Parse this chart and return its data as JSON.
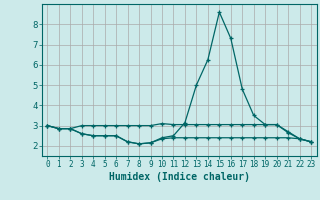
{
  "title": "",
  "xlabel": "Humidex (Indice chaleur)",
  "background_color": "#cceaea",
  "grid_color": "#aaaaaa",
  "line_color": "#006666",
  "x_values": [
    0,
    1,
    2,
    3,
    4,
    5,
    6,
    7,
    8,
    9,
    10,
    11,
    12,
    13,
    14,
    15,
    16,
    17,
    18,
    19,
    20,
    21,
    22,
    23
  ],
  "line1": [
    3.0,
    2.85,
    2.85,
    3.0,
    3.0,
    3.0,
    3.0,
    3.0,
    3.0,
    3.0,
    3.1,
    3.05,
    3.05,
    3.05,
    3.05,
    3.05,
    3.05,
    3.05,
    3.05,
    3.05,
    3.05,
    2.7,
    2.35,
    2.2
  ],
  "line2": [
    3.0,
    2.85,
    2.85,
    2.6,
    2.5,
    2.5,
    2.5,
    2.2,
    2.1,
    2.15,
    2.4,
    2.5,
    3.15,
    5.0,
    6.25,
    8.6,
    7.3,
    4.8,
    3.5,
    3.05,
    3.05,
    2.65,
    2.35,
    2.2
  ],
  "line3": [
    3.0,
    2.85,
    2.85,
    2.6,
    2.5,
    2.5,
    2.5,
    2.2,
    2.1,
    2.15,
    2.35,
    2.4,
    2.4,
    2.4,
    2.4,
    2.4,
    2.4,
    2.4,
    2.4,
    2.4,
    2.4,
    2.4,
    2.35,
    2.2
  ],
  "ylim": [
    1.5,
    9.0
  ],
  "xlim": [
    -0.5,
    23.5
  ],
  "yticks": [
    2,
    3,
    4,
    5,
    6,
    7,
    8
  ],
  "xtick_labels": [
    "0",
    "1",
    "2",
    "3",
    "4",
    "5",
    "6",
    "7",
    "8",
    "9",
    "10",
    "11",
    "12",
    "13",
    "14",
    "15",
    "16",
    "17",
    "18",
    "19",
    "20",
    "21",
    "22",
    "23"
  ]
}
